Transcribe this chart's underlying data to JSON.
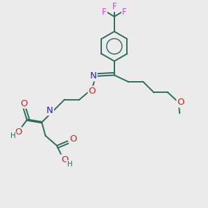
{
  "bg_color": "#ebebeb",
  "bond_color": "#2d6b5e",
  "bond_width": 1.4,
  "atom_colors": {
    "F": "#cc44cc",
    "N": "#2222cc",
    "O": "#cc2222",
    "H": "#2d6b5e",
    "C": "#2d6b5e"
  },
  "font_size": 8.5
}
